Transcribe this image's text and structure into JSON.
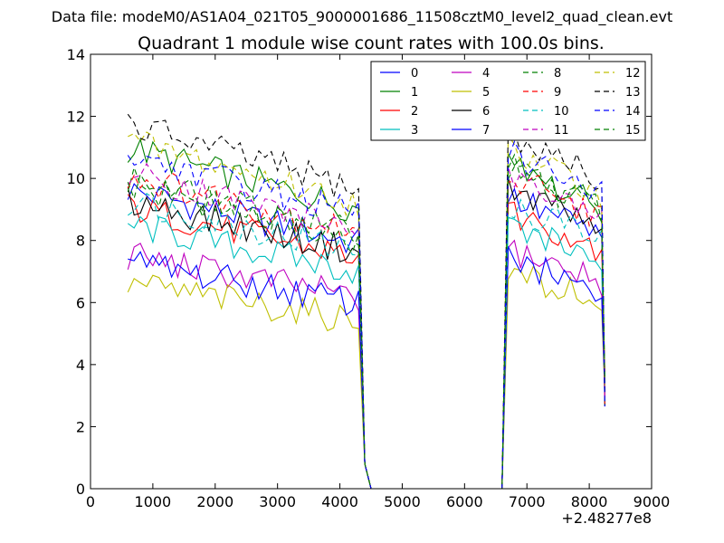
{
  "chart_data": {
    "type": "line",
    "suptitle": "Data file: modeM0/AS1A04_021T05_9000001686_11508cztM0_level2_quad_clean.evt",
    "title": "Quadrant 1 module wise count rates with 100.0s bins.",
    "xlabel": "",
    "ylabel": "",
    "x_offset_label": "+2.48277e8",
    "xlim": [
      0,
      9000
    ],
    "ylim": [
      0,
      14
    ],
    "xticks": [
      "0",
      "1000",
      "2000",
      "3000",
      "4000",
      "5000",
      "6000",
      "7000",
      "8000",
      "9000"
    ],
    "yticks": [
      "0",
      "2",
      "4",
      "6",
      "8",
      "10",
      "12",
      "14"
    ],
    "legend_position": "top-right",
    "segments": [
      {
        "x_start": 600,
        "x_end": 4300,
        "step": 100
      },
      {
        "x_start": 6700,
        "x_end": 8200,
        "step": 100
      }
    ],
    "gap": {
      "x": [
        4400,
        4500,
        6600
      ],
      "note": "count rate drops to zero between segments"
    },
    "series": [
      {
        "name": "0",
        "color": "#0000ff",
        "dash": "solid",
        "level_a": 8.6,
        "level_b": 8.4
      },
      {
        "name": "1",
        "color": "#008000",
        "dash": "solid",
        "level_a": 9.8,
        "level_b": 9.3
      },
      {
        "name": "2",
        "color": "#ff0000",
        "dash": "solid",
        "level_a": 8.1,
        "level_b": 8.0
      },
      {
        "name": "3",
        "color": "#00bfbf",
        "dash": "solid",
        "level_a": 7.6,
        "level_b": 7.6
      },
      {
        "name": "4",
        "color": "#bf00bf",
        "dash": "solid",
        "level_a": 6.7,
        "level_b": 6.9
      },
      {
        "name": "5",
        "color": "#bfbf00",
        "dash": "solid",
        "level_a": 5.9,
        "level_b": 6.2
      },
      {
        "name": "6",
        "color": "#000000",
        "dash": "solid",
        "level_a": 8.3,
        "level_b": 8.7
      },
      {
        "name": "7",
        "color": "#0000ff",
        "dash": "solid",
        "level_a": 6.5,
        "level_b": 6.6
      },
      {
        "name": "8",
        "color": "#008000",
        "dash": "dashed",
        "level_a": 8.9,
        "level_b": 9.2
      },
      {
        "name": "9",
        "color": "#ff0000",
        "dash": "dashed",
        "level_a": 9.0,
        "level_b": 9.0
      },
      {
        "name": "10",
        "color": "#00bfbf",
        "dash": "dashed",
        "level_a": 8.3,
        "level_b": 8.2
      },
      {
        "name": "11",
        "color": "#bf00bf",
        "dash": "dashed",
        "level_a": 9.1,
        "level_b": 9.0
      },
      {
        "name": "12",
        "color": "#bfbf00",
        "dash": "dashed",
        "level_a": 10.0,
        "level_b": 9.8
      },
      {
        "name": "13",
        "color": "#000000",
        "dash": "dashed",
        "level_a": 10.5,
        "level_b": 10.2
      },
      {
        "name": "14",
        "color": "#0000ff",
        "dash": "dashed",
        "level_a": 9.6,
        "level_b": 9.7
      },
      {
        "name": "15",
        "color": "#008000",
        "dash": "dashed",
        "level_a": 8.7,
        "level_b": 9.3
      }
    ]
  }
}
